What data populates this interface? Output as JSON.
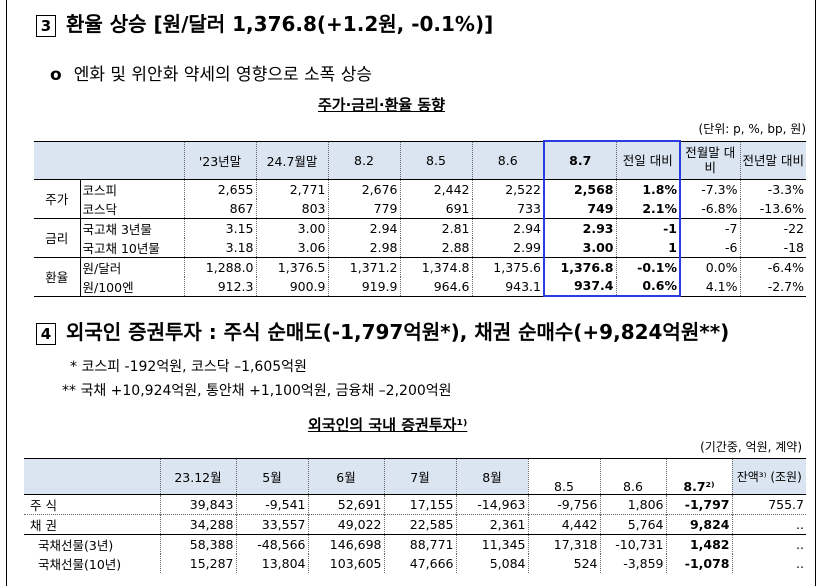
{
  "section3": {
    "num": "3",
    "title": "환율 상승 [원/달러 1,376.8(+1.2원, -0.1%)]",
    "bullet_mark": "o",
    "bullet": "엔화 및 위안화 약세의 영향으로 소폭 상승",
    "table_caption": "주가·금리·환율 동향",
    "unit": "(단위: p, %, bp, 원)",
    "headers": [
      "'23년말",
      "24.7월말",
      "8.2",
      "8.5",
      "8.6",
      "8.7",
      "전일 대비",
      "전월말 대비",
      "전년말 대비"
    ],
    "groups": [
      {
        "name": "주가",
        "rows": [
          {
            "label": "코스피",
            "values": [
              "2,655",
              "2,771",
              "2,676",
              "2,442",
              "2,522",
              "2,568",
              "1.8%",
              "-7.3%",
              "-3.3%"
            ]
          },
          {
            "label": "코스닥",
            "values": [
              "867",
              "803",
              "779",
              "691",
              "733",
              "749",
              "2.1%",
              "-6.8%",
              "-13.6%"
            ]
          }
        ]
      },
      {
        "name": "금리",
        "rows": [
          {
            "label": "국고채 3년물",
            "values": [
              "3.15",
              "3.00",
              "2.94",
              "2.81",
              "2.94",
              "2.93",
              "-1",
              "-7",
              "-22"
            ]
          },
          {
            "label": "국고채 10년물",
            "values": [
              "3.18",
              "3.06",
              "2.98",
              "2.88",
              "2.99",
              "3.00",
              "1",
              "-6",
              "-18"
            ]
          }
        ]
      },
      {
        "name": "환율",
        "rows": [
          {
            "label": "원/달러",
            "values": [
              "1,288.0",
              "1,376.5",
              "1,371.2",
              "1,374.8",
              "1,375.6",
              "1,376.8",
              "-0.1%",
              "0.0%",
              "-6.4%"
            ]
          },
          {
            "label": "원/100엔",
            "values": [
              "912.3",
              "900.9",
              "919.9",
              "964.6",
              "943.1",
              "937.4",
              "0.6%",
              "4.1%",
              "-2.7%"
            ]
          }
        ]
      }
    ]
  },
  "section4": {
    "num": "4",
    "title": "외국인 증권투자 : 주식 순매도(-1,797억원*), 채권 순매수(+9,824억원**)",
    "notes": [
      "*  코스피 -192억원, 코스닥 –1,605억원",
      "**  국채 +10,924억원, 통안채 +1,100억원, 금융채 –2,200억원"
    ],
    "table_caption": "외국인의 국내 증권투자¹⁾",
    "unit": "(기간중, 억원, 계약)",
    "headers": [
      "23.12월",
      "5월",
      "6월",
      "7월",
      "8월",
      "8.5",
      "8.6",
      "8.7²⁾",
      "잔액³⁾ (조원)"
    ],
    "rows": [
      {
        "label": "주  식",
        "values": [
          "39,843",
          "-9,541",
          "52,691",
          "17,155",
          "-14,963",
          "-9,756",
          "1,806",
          "-1,797",
          "755.7"
        ]
      },
      {
        "label": "채  권",
        "values": [
          "34,288",
          "33,557",
          "49,022",
          "22,585",
          "2,361",
          "4,442",
          "5,764",
          "9,824",
          ".."
        ]
      },
      {
        "label": "국채선물(3년)",
        "values": [
          "58,388",
          "-48,566",
          "146,698",
          "88,771",
          "11,345",
          "17,318",
          "-10,731",
          "1,482",
          ".."
        ]
      },
      {
        "label": "국채선물(10년)",
        "values": [
          "15,287",
          "13,804",
          "103,605",
          "47,666",
          "5,084",
          "524",
          "-3,859",
          "-1,078",
          ".."
        ]
      }
    ]
  }
}
